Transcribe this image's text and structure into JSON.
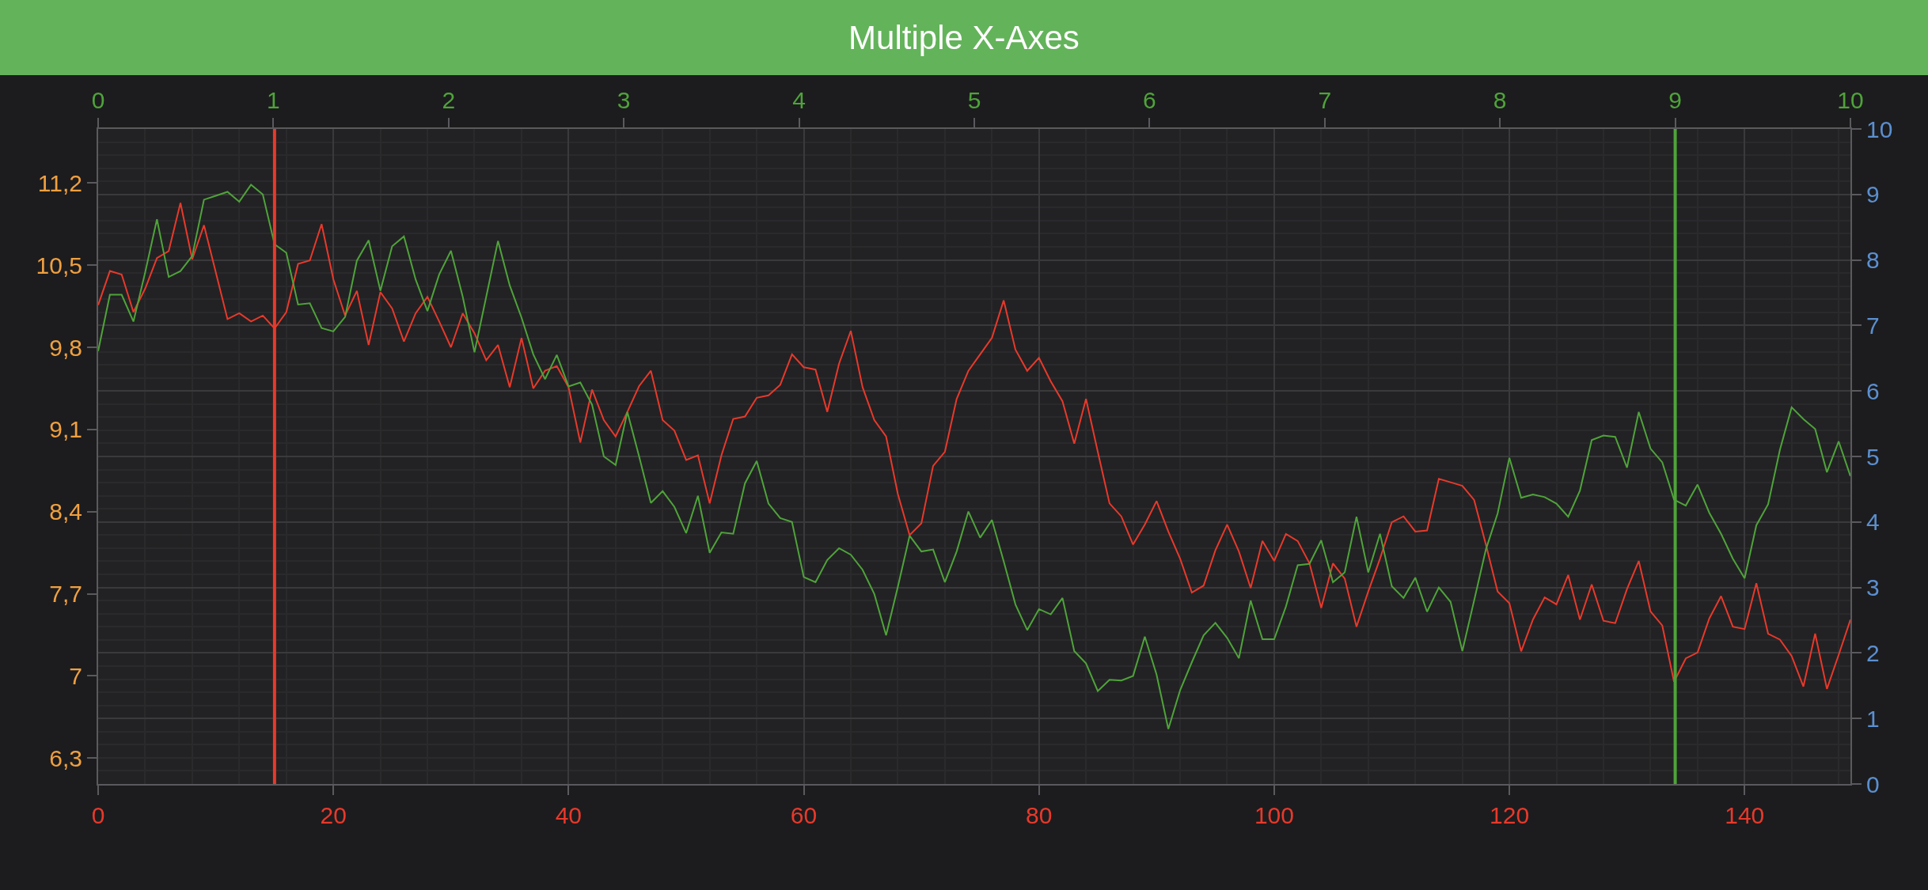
{
  "chart_data": {
    "type": "line",
    "title": "Multiple X-Axes",
    "xlim": [
      0,
      149
    ],
    "xticks": [
      0,
      20,
      40,
      60,
      80,
      100,
      120,
      140
    ],
    "x2lim": [
      0,
      10
    ],
    "x2ticks": [
      0,
      1,
      2,
      3,
      4,
      5,
      6,
      7,
      8,
      9,
      10
    ],
    "ylim": [
      6.08,
      11.66
    ],
    "yticks": [
      {
        "value": 6.3,
        "label": "6,3"
      },
      7,
      {
        "value": 7.7,
        "label": "7,7"
      },
      {
        "value": 8.4,
        "label": "8,4"
      },
      {
        "value": 9.1,
        "label": "9,1"
      },
      {
        "value": 9.8,
        "label": "9,8"
      },
      {
        "value": 10.5,
        "label": "10,5"
      },
      {
        "value": 11.2,
        "label": "11,2"
      }
    ],
    "y2lim": [
      0,
      10
    ],
    "y2ticks": [
      0,
      1,
      2,
      3,
      4,
      5,
      6,
      7,
      8,
      9,
      10
    ],
    "grid": true,
    "ref_lines": [
      {
        "axis": "x",
        "value": 15,
        "color": "#e8392b"
      },
      {
        "axis": "x2",
        "value": 9,
        "color": "#4fa33a"
      }
    ],
    "series": [
      {
        "color": "#e8392b",
        "x": [
          0,
          1,
          2,
          3,
          4,
          5,
          6,
          7,
          8,
          9,
          10,
          11,
          12,
          13,
          14,
          15,
          16,
          17,
          18,
          19,
          20,
          21,
          22,
          23,
          24,
          25,
          26,
          27,
          28,
          29,
          30,
          31,
          32,
          33,
          34,
          35,
          36,
          37,
          38,
          39,
          40,
          41,
          42,
          43,
          44,
          45,
          46,
          47,
          48,
          49,
          50,
          51,
          52,
          53,
          54,
          55,
          56,
          57,
          58,
          59,
          60,
          61,
          62,
          63,
          64,
          65,
          66,
          67,
          68,
          69,
          70,
          71,
          72,
          73,
          74,
          75,
          76,
          77,
          78,
          79,
          80,
          81,
          82,
          83,
          84,
          85,
          86,
          87,
          88,
          89,
          90,
          91,
          92,
          93,
          94,
          95,
          96,
          97,
          98,
          99,
          100,
          101,
          102,
          103,
          104,
          105,
          106,
          107,
          108,
          109,
          110,
          111,
          112,
          113,
          114,
          115,
          116,
          117,
          118,
          119,
          120,
          121,
          122,
          123,
          124,
          125,
          126,
          127,
          128,
          129,
          130,
          131,
          132,
          133,
          134,
          135,
          136,
          137,
          138,
          139,
          140,
          141,
          142,
          143,
          144,
          145,
          146,
          147,
          148,
          149
        ],
        "values": [
          10.16,
          10.45,
          10.42,
          10.1,
          10.3,
          10.56,
          10.62,
          11.03,
          10.55,
          10.84,
          10.44,
          10.04,
          10.09,
          10.02,
          10.07,
          9.96,
          10.1,
          10.51,
          10.54,
          10.85,
          10.38,
          10.07,
          10.28,
          9.82,
          10.27,
          10.13,
          9.85,
          10.09,
          10.23,
          10.02,
          9.8,
          10.09,
          9.92,
          9.69,
          9.82,
          9.46,
          9.88,
          9.45,
          9.6,
          9.64,
          9.46,
          8.99,
          9.44,
          9.18,
          9.04,
          9.25,
          9.47,
          9.6,
          9.18,
          9.09,
          8.84,
          8.88,
          8.47,
          8.88,
          9.19,
          9.21,
          9.37,
          9.39,
          9.48,
          9.74,
          9.63,
          9.61,
          9.25,
          9.66,
          9.94,
          9.46,
          9.18,
          9.04,
          8.55,
          8.2,
          8.3,
          8.79,
          8.91,
          9.36,
          9.6,
          9.74,
          9.88,
          10.2,
          9.78,
          9.6,
          9.71,
          9.51,
          9.34,
          8.98,
          9.36,
          8.91,
          8.47,
          8.36,
          8.12,
          8.29,
          8.49,
          8.23,
          8.0,
          7.71,
          7.77,
          8.07,
          8.29,
          8.06,
          7.75,
          8.15,
          7.98,
          8.21,
          8.15,
          7.96,
          7.58,
          7.96,
          7.83,
          7.42,
          7.72,
          8.0,
          8.31,
          8.36,
          8.23,
          8.24,
          8.68,
          8.65,
          8.62,
          8.5,
          8.12,
          7.72,
          7.62,
          7.21,
          7.48,
          7.67,
          7.61,
          7.86,
          7.48,
          7.78,
          7.47,
          7.45,
          7.74,
          7.98,
          7.55,
          7.43,
          6.95,
          7.15,
          7.2,
          7.49,
          7.68,
          7.42,
          7.4,
          7.79,
          7.36,
          7.31,
          7.17,
          6.91,
          7.36,
          6.89,
          7.18,
          7.48
        ]
      },
      {
        "color": "#4fa33a",
        "axis": "y2",
        "x": [
          0,
          1,
          2,
          3,
          4,
          5,
          6,
          7,
          8,
          9,
          10,
          11,
          12,
          13,
          14,
          15,
          16,
          17,
          18,
          19,
          20,
          21,
          22,
          23,
          24,
          25,
          26,
          27,
          28,
          29,
          30,
          31,
          32,
          33,
          34,
          35,
          36,
          37,
          38,
          39,
          40,
          41,
          42,
          43,
          44,
          45,
          46,
          47,
          48,
          49,
          50,
          51,
          52,
          53,
          54,
          55,
          56,
          57,
          58,
          59,
          60,
          61,
          62,
          63,
          64,
          65,
          66,
          67,
          68,
          69,
          70,
          71,
          72,
          73,
          74,
          75,
          76,
          77,
          78,
          79,
          80,
          81,
          82,
          83,
          84,
          85,
          86,
          87,
          88,
          89,
          90,
          91,
          92,
          93,
          94,
          95,
          96,
          97,
          98,
          99,
          100,
          101,
          102,
          103,
          104,
          105,
          106,
          107,
          108,
          109,
          110,
          111,
          112,
          113,
          114,
          115,
          116,
          117,
          118,
          119,
          120,
          121,
          122,
          123,
          124,
          125,
          126,
          127,
          128,
          129,
          130,
          131,
          132,
          133,
          134,
          135,
          136,
          137,
          138,
          139,
          140,
          141,
          142,
          143,
          144,
          145,
          146,
          147,
          148,
          149
        ],
        "values": [
          6.61,
          7.47,
          7.47,
          7.06,
          7.81,
          8.62,
          7.74,
          7.83,
          8.06,
          8.92,
          8.98,
          9.04,
          8.89,
          9.15,
          9.0,
          8.24,
          8.11,
          7.32,
          7.34,
          6.96,
          6.91,
          7.13,
          7.99,
          8.3,
          7.53,
          8.21,
          8.36,
          7.7,
          7.22,
          7.78,
          8.14,
          7.44,
          6.59,
          7.44,
          8.29,
          7.61,
          7.12,
          6.56,
          6.18,
          6.55,
          6.07,
          6.13,
          5.79,
          5.0,
          4.87,
          5.68,
          5.0,
          4.29,
          4.47,
          4.23,
          3.83,
          4.4,
          3.53,
          3.84,
          3.82,
          4.59,
          4.93,
          4.28,
          4.06,
          4.0,
          3.16,
          3.08,
          3.42,
          3.6,
          3.5,
          3.27,
          2.9,
          2.27,
          3.01,
          3.79,
          3.55,
          3.58,
          3.08,
          3.55,
          4.16,
          3.76,
          4.03,
          3.4,
          2.74,
          2.35,
          2.67,
          2.59,
          2.84,
          2.03,
          1.84,
          1.42,
          1.59,
          1.58,
          1.65,
          2.25,
          1.67,
          0.84,
          1.43,
          1.86,
          2.27,
          2.46,
          2.23,
          1.92,
          2.8,
          2.21,
          2.21,
          2.71,
          3.34,
          3.36,
          3.72,
          3.08,
          3.23,
          4.08,
          3.23,
          3.82,
          3.02,
          2.84,
          3.15,
          2.63,
          3.0,
          2.78,
          2.03,
          2.8,
          3.58,
          4.13,
          4.98,
          4.37,
          4.42,
          4.38,
          4.28,
          4.08,
          4.48,
          5.25,
          5.32,
          5.3,
          4.83,
          5.68,
          5.12,
          4.91,
          4.34,
          4.25,
          4.57,
          4.14,
          3.82,
          3.44,
          3.14,
          3.95,
          4.27,
          5.1,
          5.75,
          5.57,
          5.42,
          4.76,
          5.23,
          4.7
        ]
      }
    ]
  }
}
